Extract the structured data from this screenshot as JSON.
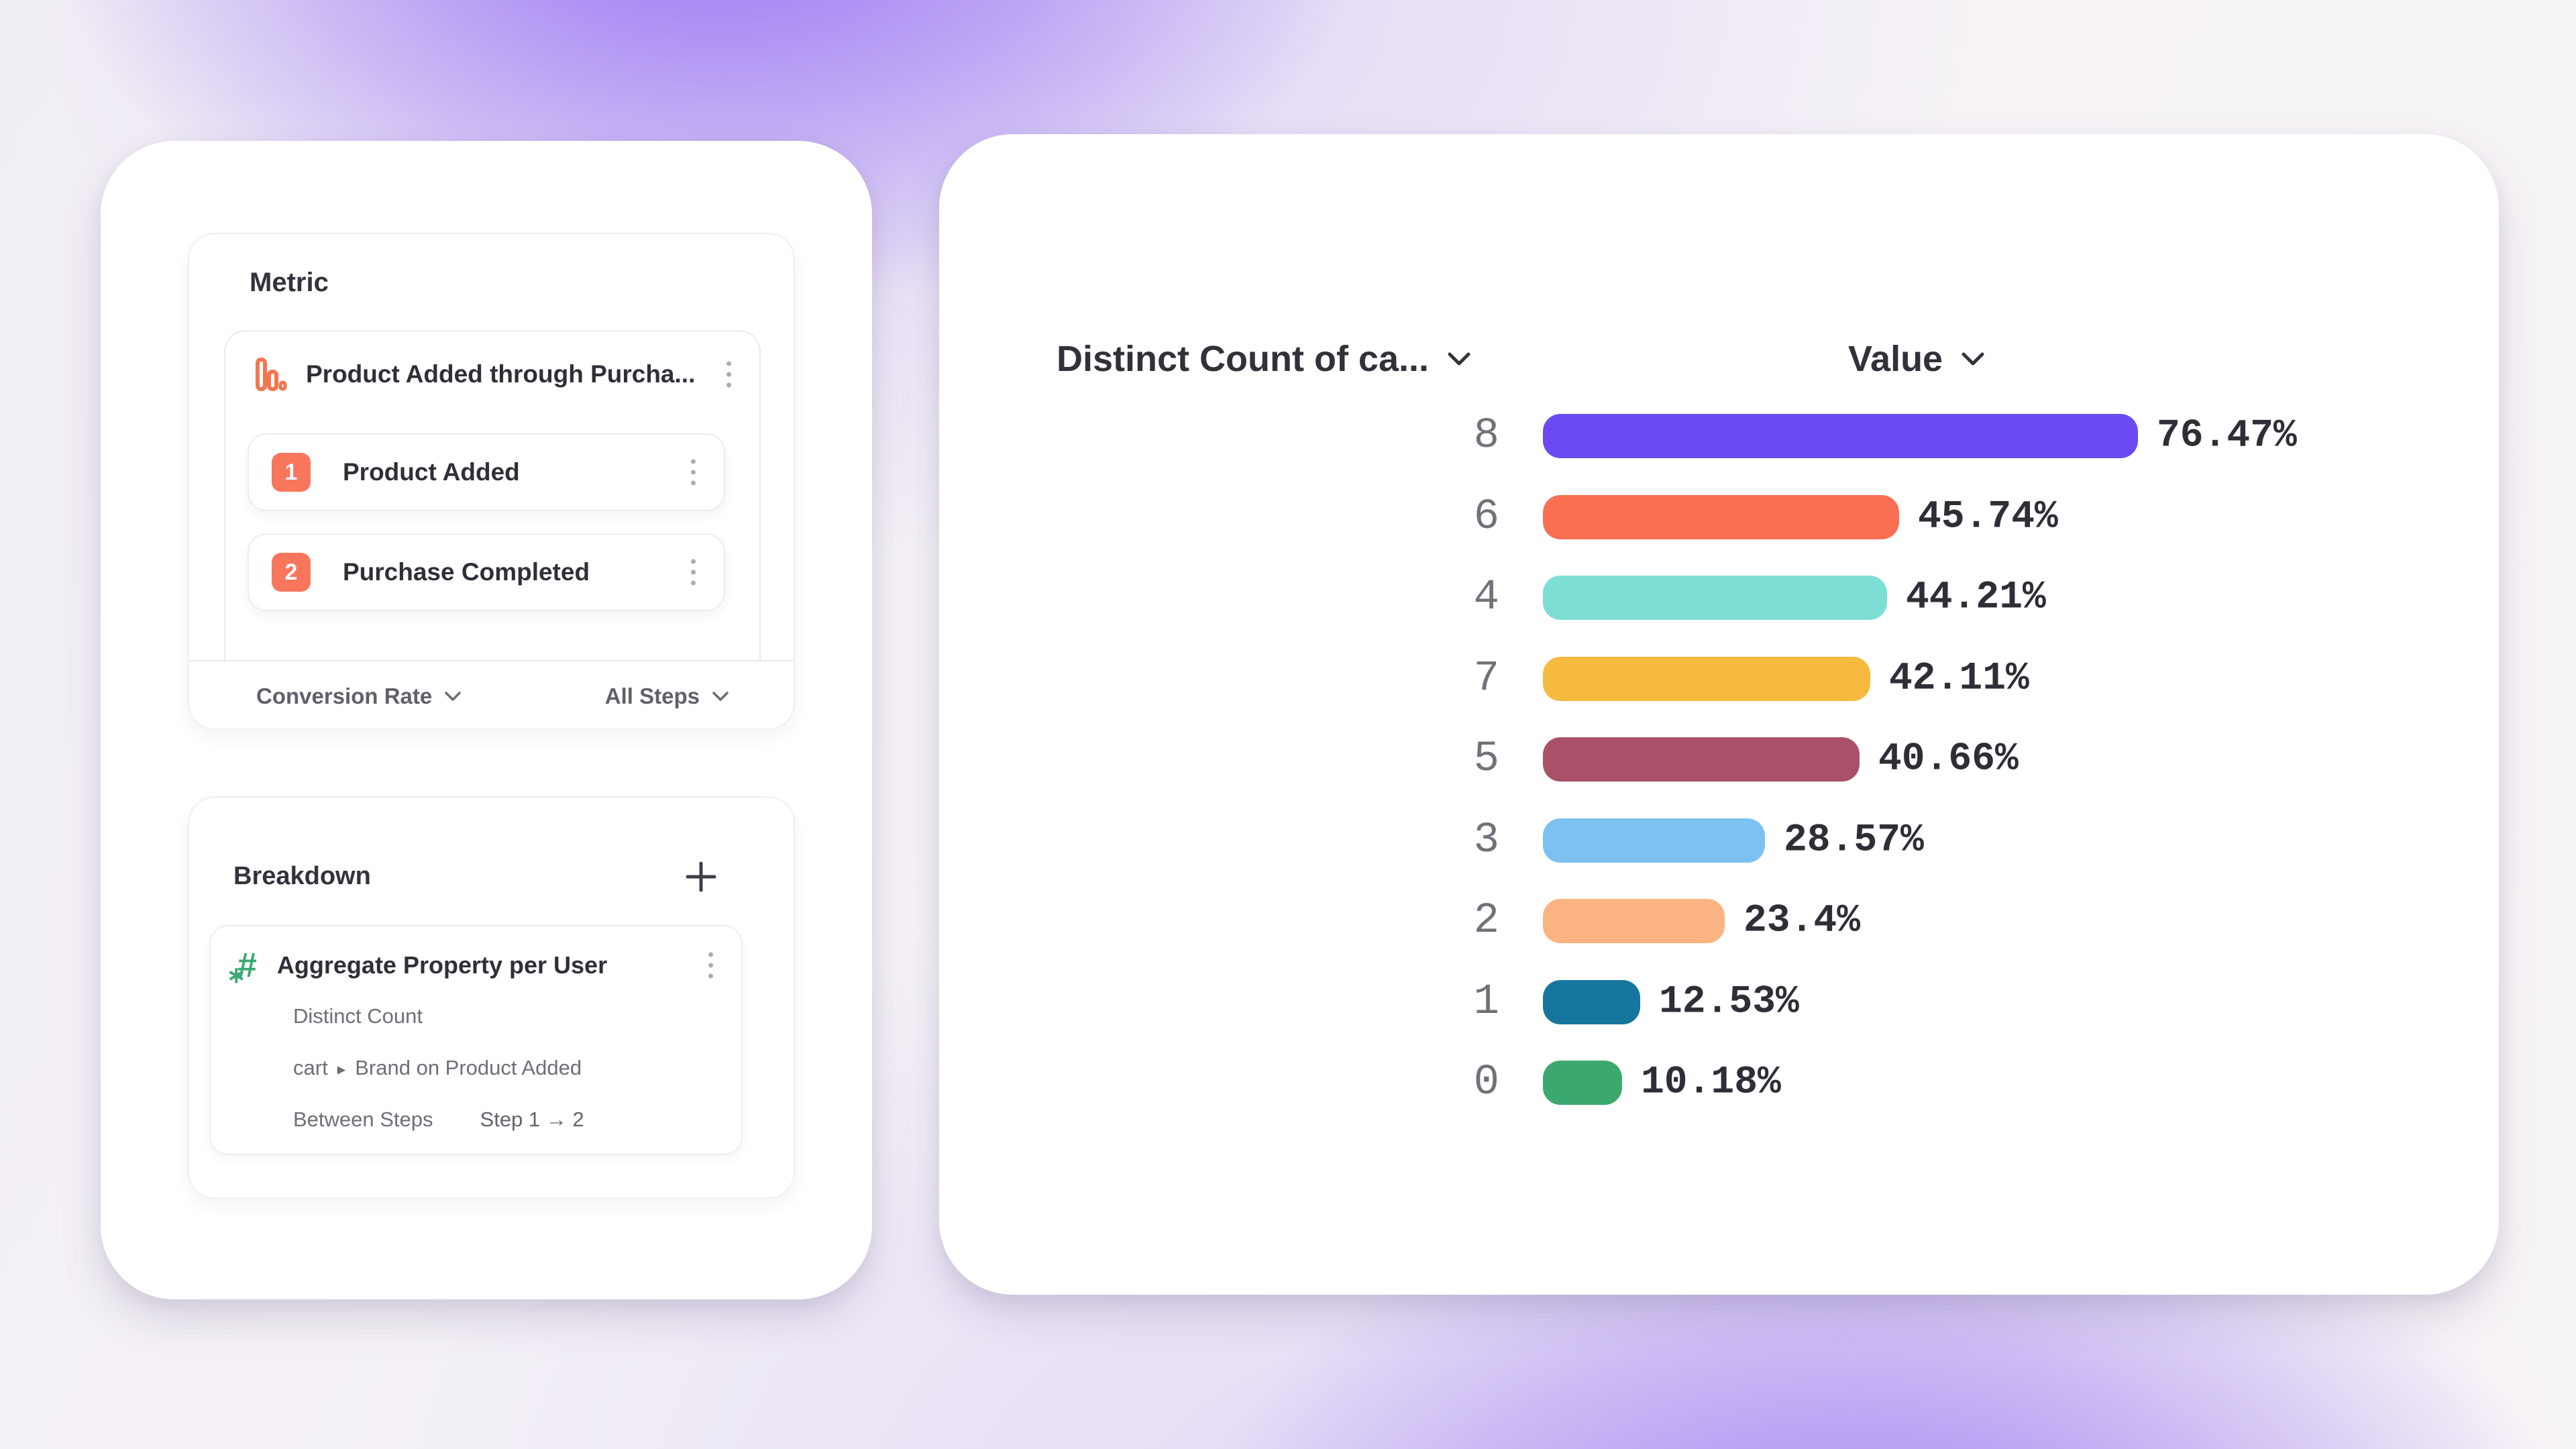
{
  "metric_panel": {
    "title": "Metric",
    "funnel": {
      "title": "Product Added through Purcha...",
      "steps": [
        {
          "number": "1",
          "label": "Product Added"
        },
        {
          "number": "2",
          "label": "Purchase Completed"
        }
      ]
    },
    "footer": {
      "conversion_dropdown": "Conversion Rate",
      "steps_dropdown": "All Steps"
    }
  },
  "breakdown_panel": {
    "title": "Breakdown",
    "property": {
      "title": "Aggregate Property per User",
      "aggregation": "Distinct Count",
      "path_prefix": "cart",
      "path_arrow": "▸",
      "path_suffix": "Brand on Product Added",
      "between_label": "Between Steps",
      "between_value": "Step 1 → 2"
    }
  },
  "chart": {
    "left_header": "Distinct Count of ca...",
    "right_header": "Value"
  },
  "chart_data": {
    "type": "bar",
    "orientation": "horizontal",
    "title": "",
    "xlabel": "Value",
    "ylabel": "Distinct Count of ca...",
    "xlim": [
      0,
      80
    ],
    "grid": false,
    "legend": false,
    "categories": [
      "8",
      "6",
      "4",
      "7",
      "5",
      "3",
      "2",
      "1",
      "0"
    ],
    "values": [
      76.47,
      45.74,
      44.21,
      42.11,
      40.66,
      28.57,
      23.4,
      12.53,
      10.18
    ],
    "value_labels": [
      "76.47%",
      "45.74%",
      "44.21%",
      "42.11%",
      "40.66%",
      "28.57%",
      "23.4%",
      "12.53%",
      "10.18%"
    ],
    "colors": [
      "#6B4AF2",
      "#FA6E51",
      "#7DDED6",
      "#F6BB3E",
      "#AA5068",
      "#7CC1F2",
      "#FCB382",
      "#17769E",
      "#3BA96E"
    ]
  },
  "colors": {
    "accent_orange": "#F4764E",
    "badge_orange": "#F8765B",
    "accent_green": "#3BA873",
    "background_glow": "#8F6BEE"
  },
  "icons": {
    "metric_type": "funnel-bars-icon",
    "breakdown_type": "numeric-hash-icon",
    "row_menu": "kebab-menu-icon",
    "add": "plus-icon",
    "dropdown": "chevron-down-icon"
  }
}
